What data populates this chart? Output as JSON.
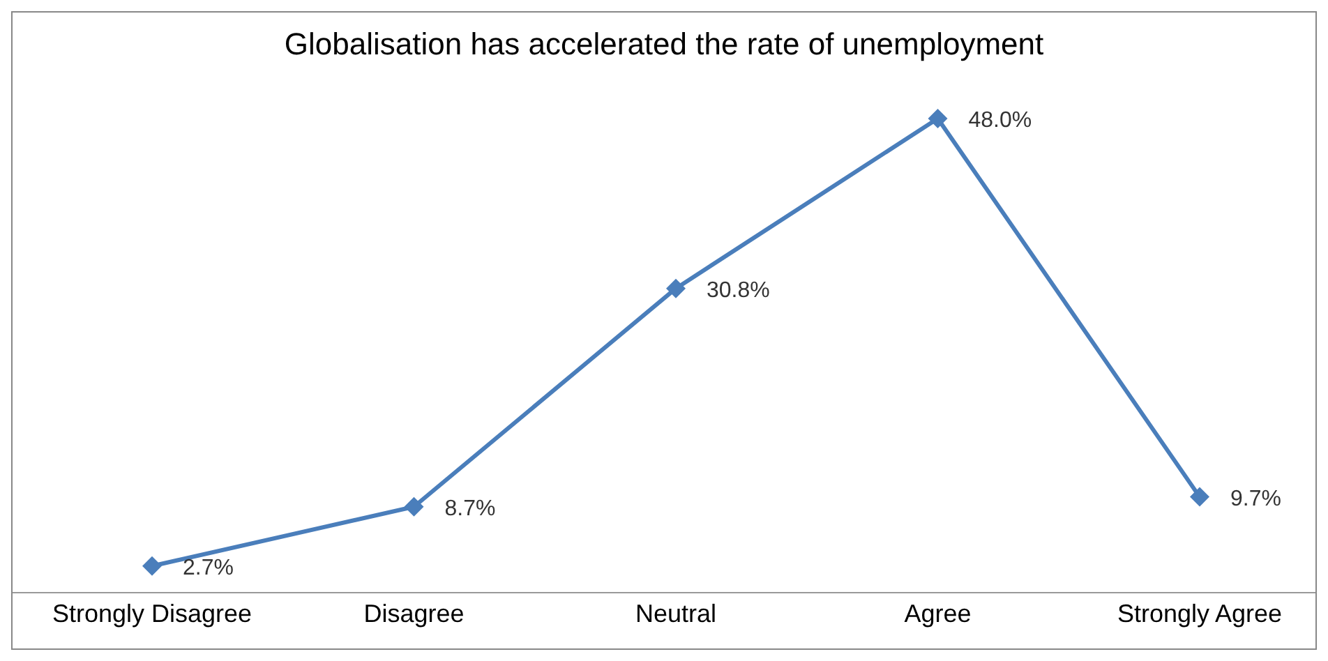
{
  "chart_data": {
    "type": "line",
    "title": "Globalisation has accelerated the rate of unemployment",
    "categories": [
      "Strongly Disagree",
      "Disagree",
      "Neutral",
      "Agree",
      "Strongly Agree"
    ],
    "series": [
      {
        "color": "#4a7ebb",
        "values": [
          2.7,
          8.7,
          30.8,
          48.0,
          9.7
        ],
        "value_labels": [
          "2.7%",
          "8.7%",
          "30.8%",
          "48.0%",
          "9.7%"
        ]
      }
    ],
    "marker": "diamond",
    "line_style": "solid",
    "grid": false,
    "legend": false
  }
}
